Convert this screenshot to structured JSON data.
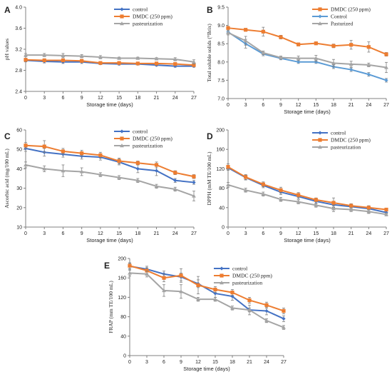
{
  "colors": {
    "blue": "#4472c4",
    "orange": "#ed7d31",
    "gray": "#a5a5a5"
  },
  "chart_data": [
    {
      "type": "line",
      "letter": "A",
      "xlabel": "Storage time (days)",
      "ylabel": "pH values",
      "x": [
        0,
        3,
        6,
        9,
        12,
        15,
        18,
        21,
        24,
        27
      ],
      "xlim": [
        0,
        27
      ],
      "ylim": [
        2.4,
        4.0
      ],
      "yticks": [
        "2.4",
        "2.8",
        "3.2",
        "3.6",
        "4.0"
      ],
      "legend_position": "top-right",
      "series": [
        {
          "name": "control",
          "color": "#4472c4",
          "marker": "diamond",
          "values": [
            2.99,
            2.97,
            2.96,
            2.96,
            2.93,
            2.92,
            2.92,
            2.9,
            2.88,
            2.88
          ],
          "errors": [
            0.03,
            0.03,
            0.03,
            0.03,
            0.02,
            0.02,
            0.02,
            0.02,
            0.02,
            0.02
          ]
        },
        {
          "name": "DMDC (250 ppm)",
          "color": "#ed7d31",
          "marker": "square",
          "values": [
            3.0,
            2.99,
            2.99,
            2.98,
            2.94,
            2.94,
            2.93,
            2.93,
            2.92,
            2.9
          ],
          "errors": [
            0.03,
            0.03,
            0.03,
            0.03,
            0.02,
            0.02,
            0.02,
            0.02,
            0.02,
            0.02
          ]
        },
        {
          "name": "pasteurization",
          "color": "#a5a5a5",
          "marker": "triangle",
          "values": [
            3.09,
            3.09,
            3.08,
            3.07,
            3.05,
            3.03,
            3.03,
            3.02,
            3.01,
            2.96
          ],
          "errors": [
            0.03,
            0.03,
            0.04,
            0.03,
            0.03,
            0.02,
            0.02,
            0.02,
            0.03,
            0.04
          ]
        }
      ]
    },
    {
      "type": "line",
      "letter": "B",
      "xlabel": "Storage time (days)",
      "ylabel": "Total soluble solids (°Brix)",
      "x": [
        0,
        3,
        6,
        9,
        12,
        15,
        18,
        21,
        24,
        27
      ],
      "xlim": [
        0,
        27
      ],
      "ylim": [
        7.0,
        9.5
      ],
      "yticks": [
        "7.0",
        "7.5",
        "8.0",
        "8.5",
        "9.0",
        "9.5"
      ],
      "legend_position": "top-right",
      "series": [
        {
          "name": "DMDC (250 ppm)",
          "color": "#ed7d31",
          "marker": "square",
          "values": [
            8.93,
            8.88,
            8.83,
            8.68,
            8.48,
            8.51,
            8.44,
            8.47,
            8.41,
            8.21
          ],
          "errors": [
            0.04,
            0.04,
            0.12,
            0.05,
            0.04,
            0.04,
            0.05,
            0.12,
            0.14,
            0.05
          ]
        },
        {
          "name": "Control",
          "color": "#5b9bd5",
          "marker": "diamond",
          "values": [
            8.82,
            8.5,
            8.22,
            8.1,
            8.0,
            8.0,
            7.87,
            7.79,
            7.66,
            7.5
          ],
          "errors": [
            0.04,
            0.12,
            0.05,
            0.04,
            0.04,
            0.04,
            0.05,
            0.05,
            0.05,
            0.05
          ]
        },
        {
          "name": "Pasturized",
          "color": "#a5a5a5",
          "marker": "triangle",
          "values": [
            8.8,
            8.58,
            8.25,
            8.12,
            8.1,
            8.1,
            7.97,
            7.94,
            7.92,
            7.85
          ],
          "errors": [
            0.06,
            0.12,
            0.05,
            0.04,
            0.06,
            0.08,
            0.1,
            0.08,
            0.05,
            0.14
          ]
        }
      ]
    },
    {
      "type": "line",
      "letter": "C",
      "xlabel": "Storage time (days)",
      "ylabel": "Ascorbic acid (mg/100 mL)",
      "x": [
        0,
        3,
        6,
        9,
        12,
        15,
        18,
        21,
        24,
        27
      ],
      "xlim": [
        0,
        27
      ],
      "ylim": [
        10,
        60
      ],
      "yticks": [
        "10",
        "20",
        "30",
        "40",
        "50",
        "60"
      ],
      "legend_position": "top-right",
      "series": [
        {
          "name": "control",
          "color": "#4472c4",
          "marker": "diamond",
          "values": [
            50.5,
            48.5,
            47.5,
            46.5,
            46.0,
            43.5,
            40.0,
            39.0,
            34.0,
            33.0
          ],
          "errors": [
            1.5,
            2.0,
            1.5,
            1.5,
            1.5,
            1.5,
            2.0,
            2.5,
            1.0,
            1.0
          ]
        },
        {
          "name": "DMDC (250 ppm)",
          "color": "#ed7d31",
          "marker": "square",
          "values": [
            52.0,
            51.5,
            49.0,
            48.0,
            47.0,
            44.0,
            43.0,
            42.0,
            38.0,
            36.0
          ],
          "errors": [
            1.5,
            3.0,
            1.5,
            1.5,
            1.5,
            1.5,
            1.0,
            1.5,
            1.0,
            1.0
          ]
        },
        {
          "name": "pasteurization",
          "color": "#a5a5a5",
          "marker": "triangle",
          "values": [
            42.0,
            40.0,
            39.0,
            38.5,
            37.0,
            35.5,
            34.0,
            31.0,
            29.5,
            26.0
          ],
          "errors": [
            1.5,
            1.5,
            3.0,
            2.0,
            1.0,
            1.0,
            1.0,
            1.0,
            1.0,
            2.5
          ]
        }
      ]
    },
    {
      "type": "line",
      "letter": "D",
      "xlabel": "Storage time (days)",
      "ylabel": "DPPH (mM TE/100 mL)",
      "x": [
        0,
        3,
        6,
        9,
        12,
        15,
        18,
        21,
        24,
        27
      ],
      "xlim": [
        0,
        27
      ],
      "ylim": [
        0,
        200
      ],
      "yticks": [
        "0",
        "40",
        "80",
        "120",
        "160",
        "200"
      ],
      "legend_position": "top-right",
      "series": [
        {
          "name": "control",
          "color": "#4472c4",
          "marker": "diamond",
          "values": [
            122,
            102,
            86,
            72,
            63,
            53,
            46,
            42,
            38,
            30
          ],
          "errors": [
            5,
            5,
            5,
            5,
            5,
            5,
            5,
            4,
            4,
            3
          ]
        },
        {
          "name": "DMDC (250 ppm)",
          "color": "#ed7d31",
          "marker": "square",
          "values": [
            124,
            103,
            88,
            76,
            66,
            56,
            50,
            44,
            40,
            36
          ],
          "errors": [
            6,
            5,
            5,
            6,
            5,
            4,
            10,
            4,
            4,
            3
          ]
        },
        {
          "name": "pasteurization",
          "color": "#a5a5a5",
          "marker": "triangle",
          "values": [
            87,
            76,
            68,
            57,
            52,
            45,
            38,
            36,
            32,
            26
          ],
          "errors": [
            5,
            4,
            4,
            4,
            4,
            4,
            6,
            4,
            4,
            3
          ]
        }
      ]
    },
    {
      "type": "line",
      "letter": "E",
      "xlabel": "Storage time (days)",
      "ylabel": "FRAP (mm TE/100 mL)",
      "x": [
        0,
        3,
        6,
        9,
        12,
        15,
        18,
        21,
        24,
        27
      ],
      "xlim": [
        0,
        27
      ],
      "ylim": [
        0,
        200
      ],
      "yticks": [
        "0",
        "40",
        "80",
        "120",
        "160",
        "200"
      ],
      "legend_position": "top-right",
      "series": [
        {
          "name": "control",
          "color": "#4472c4",
          "marker": "diamond",
          "values": [
            184,
            178,
            168,
            162,
            148,
            128,
            122,
            94,
            92,
            76
          ],
          "errors": [
            6,
            6,
            6,
            8,
            8,
            8,
            8,
            10,
            8,
            6
          ]
        },
        {
          "name": "DMDC (250 ppm)",
          "color": "#ed7d31",
          "marker": "square",
          "values": [
            185,
            175,
            160,
            165,
            145,
            136,
            130,
            114,
            104,
            92
          ],
          "errors": [
            6,
            6,
            8,
            14,
            18,
            6,
            6,
            6,
            6,
            6
          ]
        },
        {
          "name": "pasteurization",
          "color": "#a5a5a5",
          "marker": "triangle",
          "values": [
            170,
            168,
            134,
            132,
            116,
            116,
            98,
            94,
            72,
            58
          ],
          "errors": [
            6,
            6,
            12,
            14,
            4,
            4,
            4,
            4,
            4,
            4
          ]
        }
      ]
    }
  ]
}
